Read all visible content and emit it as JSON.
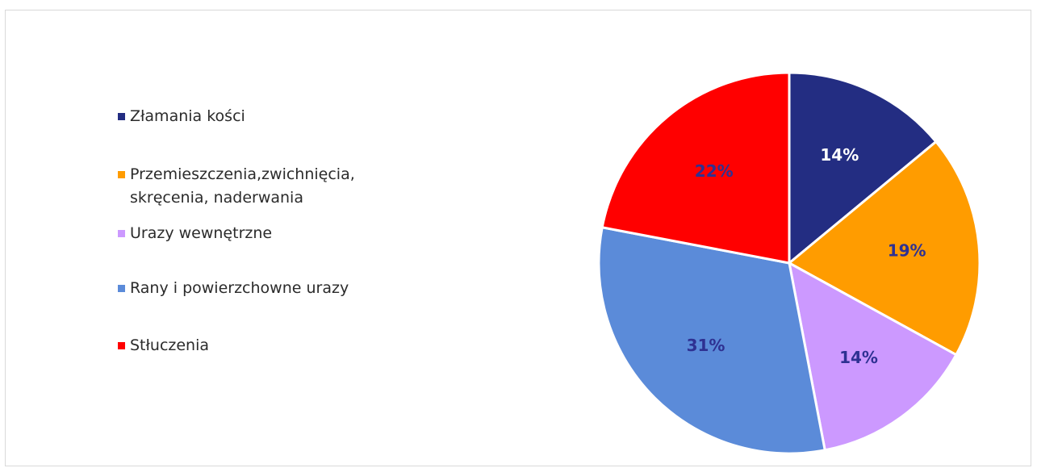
{
  "chart_data": {
    "type": "pie",
    "categories": [
      "Złamania kości",
      "Przemieszczenia,zwichnięcia, skręcenia, naderwania",
      "Urazy wewnętrzne",
      "Rany i powierzchowne urazy",
      "Stłuczenia"
    ],
    "values": [
      14,
      19,
      14,
      31,
      22
    ],
    "data_labels": [
      "14%",
      "19%",
      "14%",
      "31%",
      "22%"
    ],
    "colors": [
      "#232d82",
      "#ff9c00",
      "#cc99ff",
      "#5b8bd9",
      "#ff0000"
    ],
    "label_colors": [
      "#ffffff",
      "#2e3192",
      "#2e3192",
      "#2e3192",
      "#2e3192"
    ],
    "legend_position": "left"
  },
  "legend": {
    "items": [
      {
        "label": "Złamania kości",
        "color": "#232d82"
      },
      {
        "label": "Przemieszczenia,zwichnięcia,\nskręcenia, naderwania",
        "color": "#ff9c00"
      },
      {
        "label": "Urazy wewnętrzne",
        "color": "#cc99ff"
      },
      {
        "label": "Rany i powierzchowne urazy",
        "color": "#5b8bd9"
      },
      {
        "label": "Stłuczenia",
        "color": "#ff0000"
      }
    ]
  }
}
